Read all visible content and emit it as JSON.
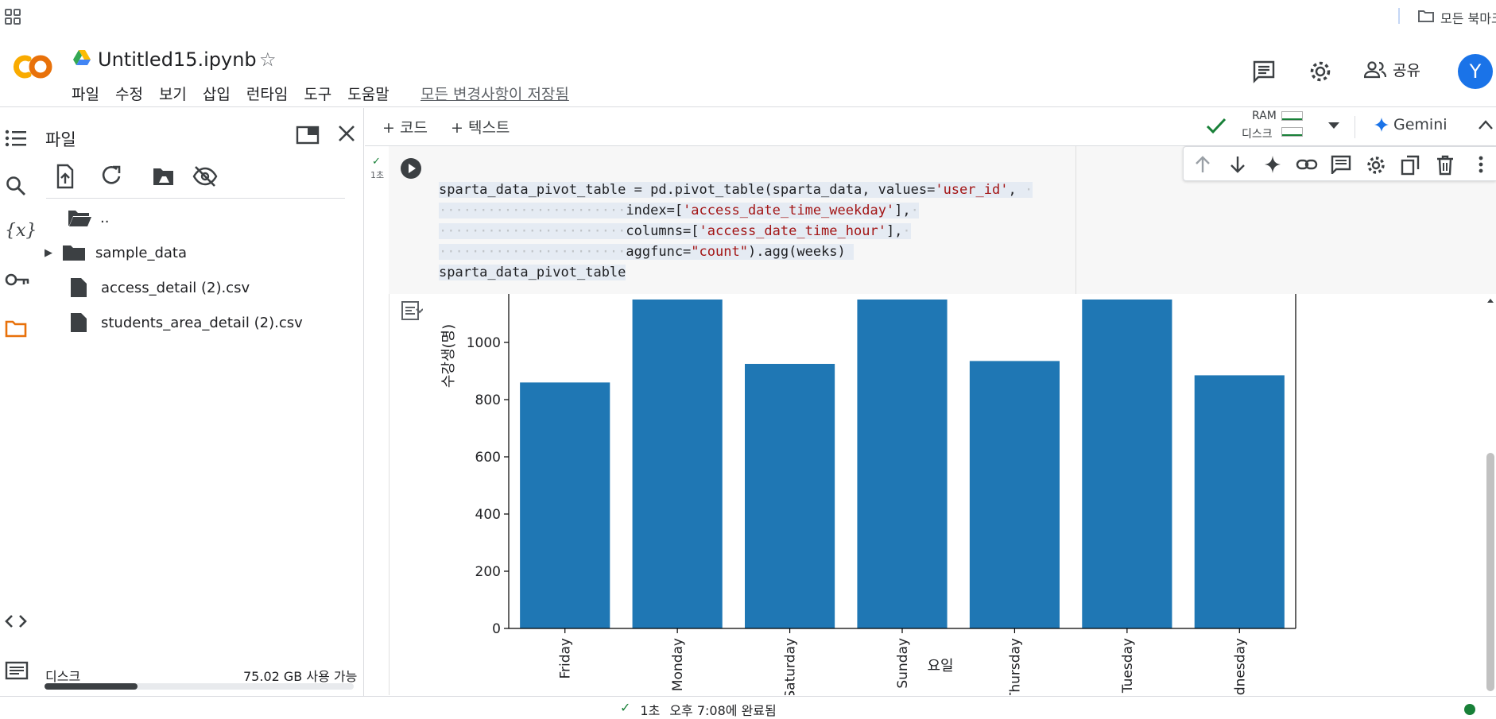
{
  "bookmarks": {
    "folder_label": "모든 북마크"
  },
  "header": {
    "title": "Untitled15.ipynb",
    "menu": [
      "파일",
      "수정",
      "보기",
      "삽입",
      "런타임",
      "도구",
      "도움말"
    ],
    "save_status": "모든 변경사항이 저장됨",
    "share_label": "공유",
    "avatar_letter": "Y"
  },
  "files_panel": {
    "title": "파일",
    "items": [
      {
        "name": "..",
        "type": "folder-open-icon"
      },
      {
        "name": "sample_data",
        "type": "folder-icon"
      },
      {
        "name": "access_detail (2).csv",
        "type": "file-icon"
      },
      {
        "name": "students_area_detail (2).csv",
        "type": "file-icon"
      }
    ],
    "disk_label": "디스크",
    "disk_available": "75.02 GB 사용 가능",
    "disk_used_fraction": 0.3
  },
  "toolbar": {
    "add_code": "+ 코드",
    "add_text": "+ 텍스트",
    "ram_label": "RAM",
    "disk_label": "디스크",
    "gemini_label": "Gemini"
  },
  "cell": {
    "exec_time": "1초",
    "code": {
      "l1_pre": "sparta_data_pivot_table = pd.pivot_table(sparta_data, values=",
      "l1_str": "'user_id'",
      "l1_post": ",",
      "l2_pre": "index=[",
      "l2_str": "'access_date_time_weekday'",
      "l2_post": "],",
      "l3_pre": "columns=[",
      "l3_str": "'access_date_time_hour'",
      "l3_post": "],",
      "l4_pre": "aggfunc=",
      "l4_str": "\"count\"",
      "l4_post": ").agg(weeks)",
      "l5": "sparta_data_pivot_table"
    }
  },
  "status_bar": {
    "time": "1초",
    "completed": "오후 7:08에 완료됨"
  },
  "colors": {
    "bar": "#1f77b4",
    "accent": "#1a73e8",
    "ok": "#188038"
  },
  "chart_data": {
    "type": "bar",
    "categories": [
      "Friday",
      "Monday",
      "Saturday",
      "Sunday",
      "Thursday",
      "Tuesday",
      "Wednesday"
    ],
    "values": [
      860,
      1150,
      925,
      1150,
      935,
      1150,
      885
    ],
    "xlabel": "요일",
    "ylabel": "수강생(명)",
    "yticks": [
      0,
      200,
      400,
      600,
      800,
      1000
    ],
    "ylim": [
      0,
      1100
    ],
    "grid": false
  }
}
